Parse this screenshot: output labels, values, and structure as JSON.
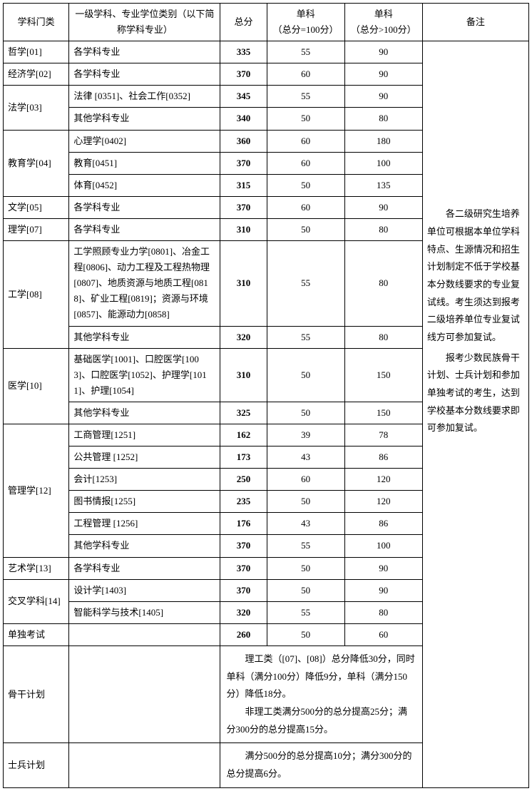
{
  "headers": {
    "category": "学科门类",
    "program": "一级学科、专业学位类别（以下简称学科专业）",
    "total": "总分",
    "sub1_l1": "单科",
    "sub1_l2": "（总分=100分）",
    "sub2_l1": "单科",
    "sub2_l2": "（总分>100分）",
    "notes": "备注"
  },
  "notes_para1": "各二级研究生培养单位可根据本单位学科特点、生源情况和招生计划制定不低于学校基本分数线要求的专业复试线。考生须达到报考二级培养单位专业复试线方可参加复试。",
  "notes_para2": "报考少数民族骨干计划、士兵计划和参加单独考试的考生，达到学校基本分数线要求即可参加复试。",
  "rows": [
    {
      "cat": "哲学[01]",
      "prog": "各学科专业",
      "total": "335",
      "s1": "55",
      "s2": "90"
    },
    {
      "cat": "经济学[02]",
      "prog": "各学科专业",
      "total": "370",
      "s1": "60",
      "s2": "90"
    },
    {
      "cat": "法学[03]",
      "span": 2,
      "sub": [
        {
          "prog": "法律 [0351]、社会工作[0352]",
          "total": "345",
          "s1": "55",
          "s2": "90"
        },
        {
          "prog": "其他学科专业",
          "total": "340",
          "s1": "50",
          "s2": "80"
        }
      ]
    },
    {
      "cat": "教育学[04]",
      "span": 3,
      "sub": [
        {
          "prog": "心理学[0402]",
          "total": "360",
          "s1": "60",
          "s2": "180"
        },
        {
          "prog": "教育[0451]",
          "total": "370",
          "s1": "60",
          "s2": "100"
        },
        {
          "prog": "体育[0452]",
          "total": "315",
          "s1": "50",
          "s2": "135"
        }
      ]
    },
    {
      "cat": "文学[05]",
      "prog": "各学科专业",
      "total": "370",
      "s1": "60",
      "s2": "90"
    },
    {
      "cat": "理学[07]",
      "prog": "各学科专业",
      "total": "310",
      "s1": "50",
      "s2": "80"
    },
    {
      "cat": "工学[08]",
      "span": 2,
      "sub": [
        {
          "prog": "工学照顾专业力学[0801]、冶金工程[0806]、动力工程及工程热物理[0807]、地质资源与地质工程[0818]、矿业工程[0819]；资源与环境[0857]、能源动力[0858]",
          "total": "310",
          "s1": "55",
          "s2": "80"
        },
        {
          "prog": "其他学科专业",
          "total": "320",
          "s1": "55",
          "s2": "80"
        }
      ]
    },
    {
      "cat": "医学[10]",
      "span": 2,
      "sub": [
        {
          "prog": "基础医学[1001]、口腔医学[1003]、口腔医学[1052]、护理学[1011]、护理[1054]",
          "total": "310",
          "s1": "50",
          "s2": "150"
        },
        {
          "prog": "其他学科专业",
          "total": "325",
          "s1": "50",
          "s2": "150"
        }
      ]
    },
    {
      "cat": "管理学[12]",
      "span": 6,
      "sub": [
        {
          "prog": "工商管理[1251]",
          "total": "162",
          "s1": "39",
          "s2": "78"
        },
        {
          "prog": "公共管理 [1252]",
          "total": "173",
          "s1": "43",
          "s2": "86"
        },
        {
          "prog": "会计[1253]",
          "total": "250",
          "s1": "60",
          "s2": "120"
        },
        {
          "prog": "图书情报[1255]",
          "total": "235",
          "s1": "50",
          "s2": "120"
        },
        {
          "prog": "工程管理 [1256]",
          "total": "176",
          "s1": "43",
          "s2": "86"
        },
        {
          "prog": "其他学科专业",
          "total": "370",
          "s1": "55",
          "s2": "100"
        }
      ]
    },
    {
      "cat": "艺术学[13]",
      "prog": "各学科专业",
      "total": "370",
      "s1": "50",
      "s2": "90"
    },
    {
      "cat": "交叉学科[14]",
      "span": 2,
      "sub": [
        {
          "prog": "设计学[1403]",
          "total": "370",
          "s1": "50",
          "s2": "90"
        },
        {
          "prog": "智能科学与技术[1405]",
          "total": "320",
          "s1": "55",
          "s2": "80"
        }
      ]
    },
    {
      "cat": "单独考试",
      "prog": "",
      "total": "260",
      "s1": "50",
      "s2": "60"
    }
  ],
  "backbone": {
    "label": "骨干计划",
    "p1": "理工类（[07]、[08]）总分降低30分，同时单科（满分100分）降低9分，单科（满分150分）降低18分。",
    "p2": "非理工类满分500分的总分提高25分；满分300分的总分提高15分。"
  },
  "soldier": {
    "label": "士兵计划",
    "p1": "满分500分的总分提高10分；满分300分的总分提高6分。"
  }
}
